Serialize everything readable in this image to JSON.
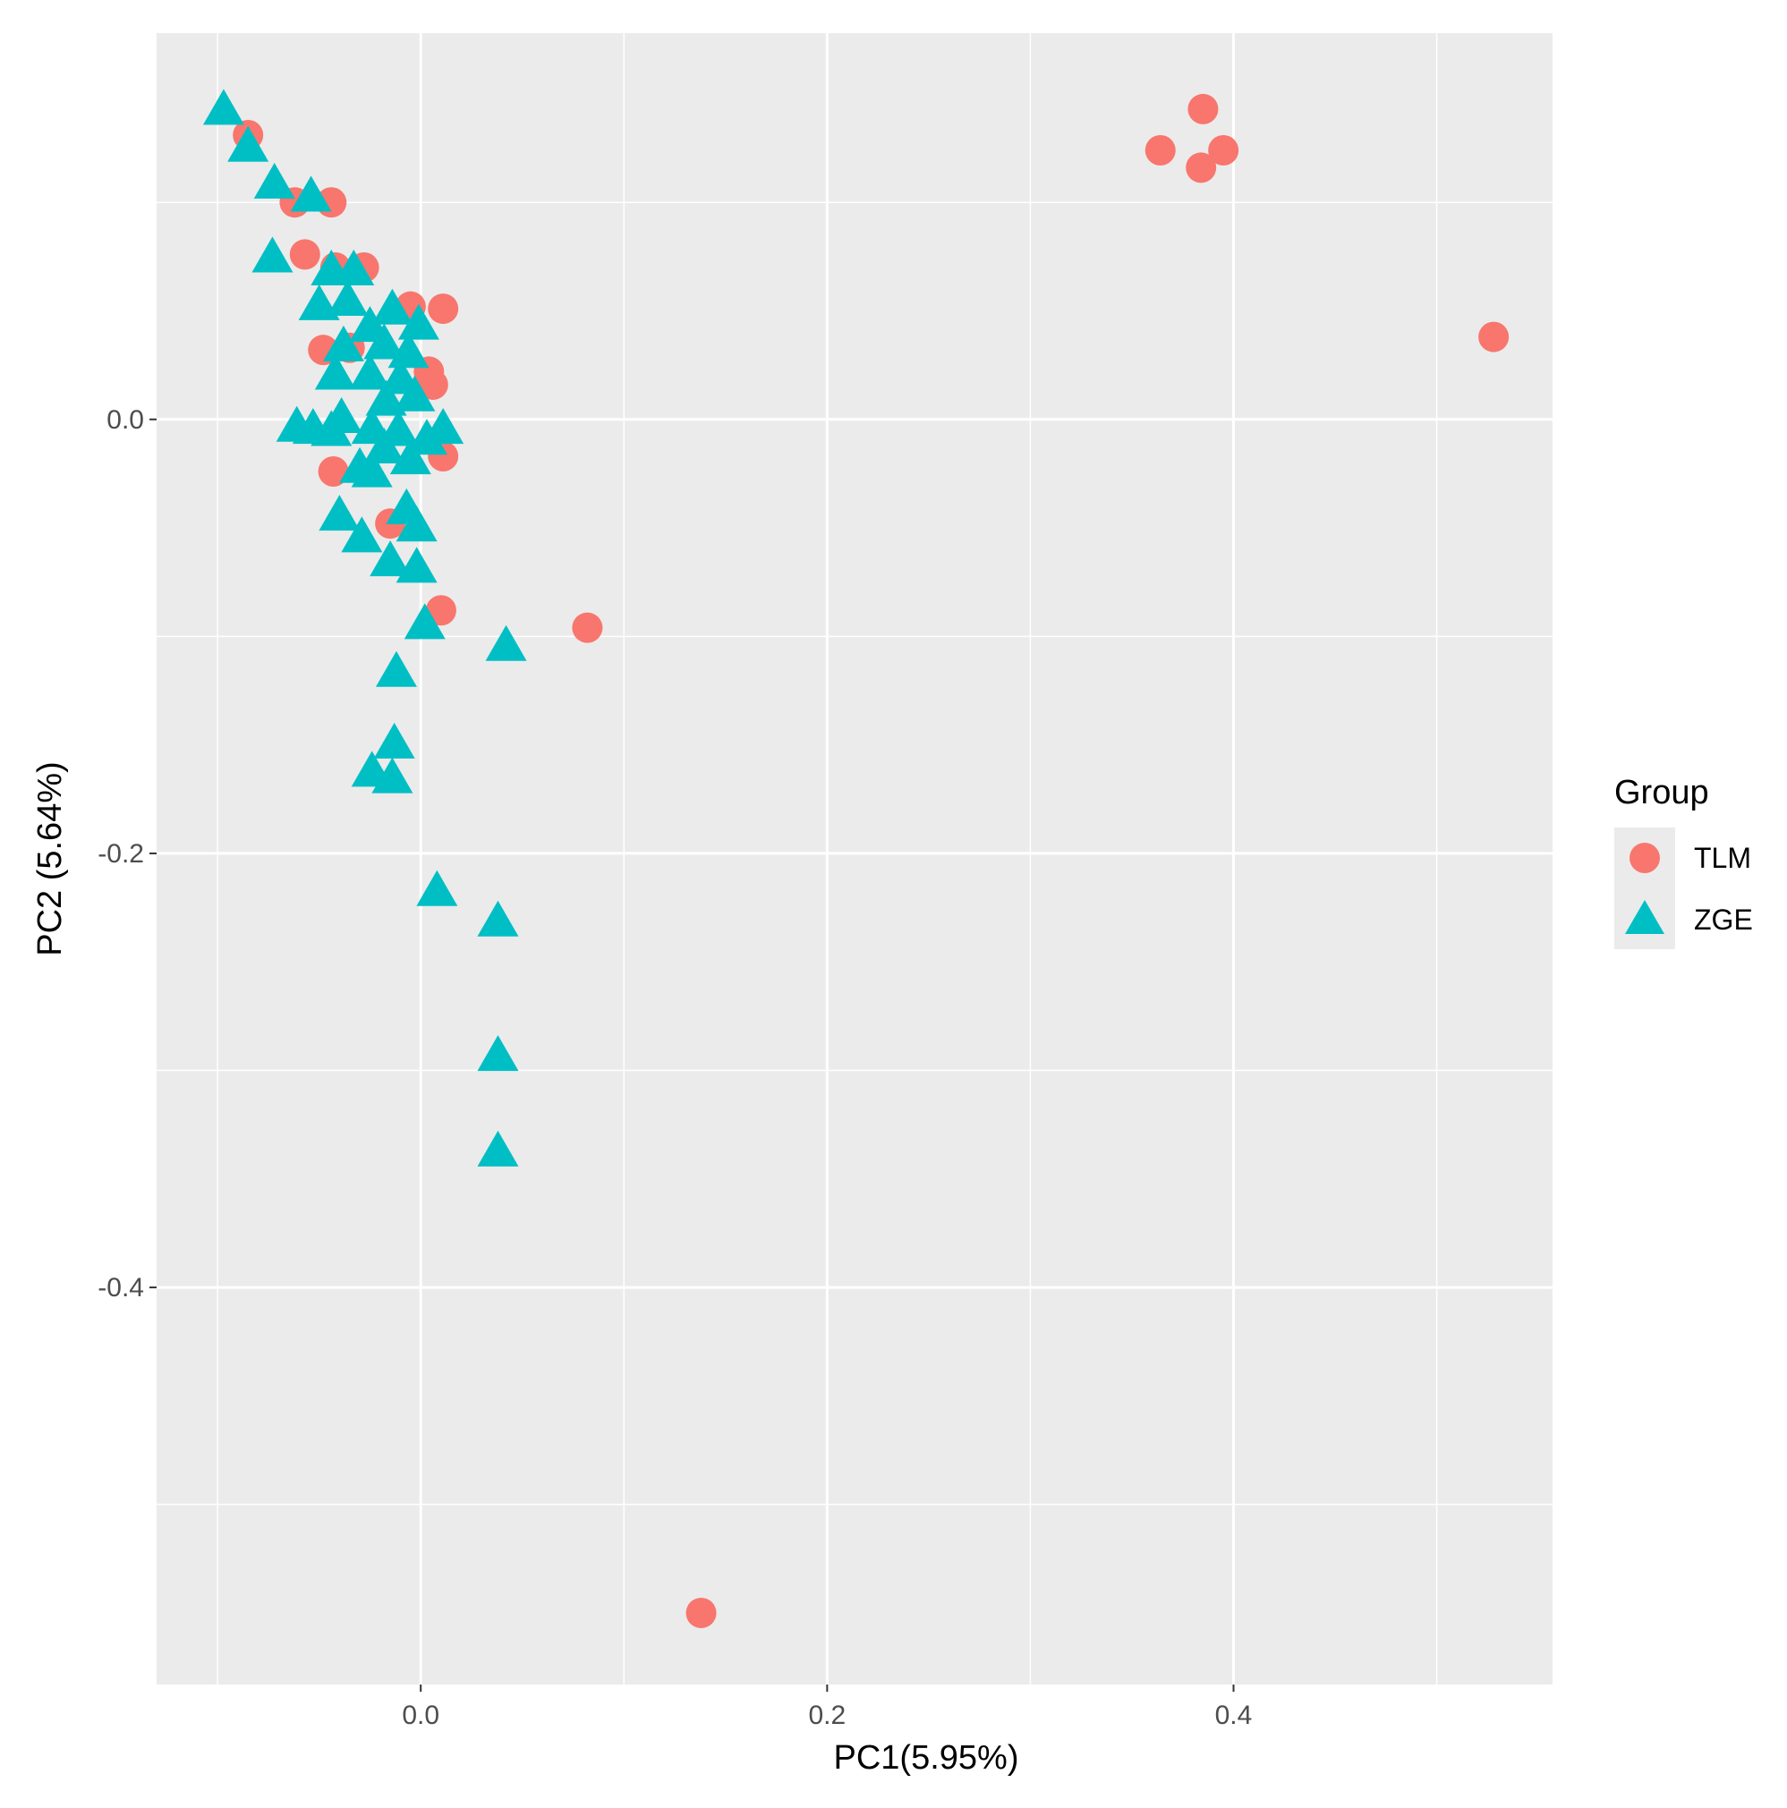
{
  "chart_data": {
    "type": "scatter",
    "xlabel": "PC1(5.95%)",
    "ylabel": "PC2 (5.64%)",
    "xlim": [
      -0.13,
      0.557
    ],
    "ylim": [
      -0.583,
      0.178
    ],
    "x_major_ticks": [
      0.0,
      0.2,
      0.4
    ],
    "x_tick_labels": [
      "0.0",
      "0.2",
      "0.4"
    ],
    "x_minor_ticks": [
      -0.1,
      0.1,
      0.3,
      0.5
    ],
    "y_major_ticks": [
      0.0,
      -0.2,
      -0.4
    ],
    "y_tick_labels": [
      "0.0",
      "-0.2",
      "-0.4"
    ],
    "y_minor_ticks": [
      0.1,
      -0.1,
      -0.3,
      -0.5
    ],
    "grid": true,
    "panel_background": "#ebebeb",
    "legend": {
      "title": "Group",
      "position": "right"
    },
    "series": [
      {
        "name": "TLM",
        "marker": "circle",
        "color": "#f8766d",
        "points": [
          [
            0.385,
            0.143
          ],
          [
            0.364,
            0.124
          ],
          [
            0.384,
            0.116
          ],
          [
            0.395,
            0.124
          ],
          [
            0.528,
            0.038
          ],
          [
            0.082,
            -0.096
          ],
          [
            0.138,
            -0.55
          ],
          [
            -0.085,
            0.131
          ],
          [
            -0.062,
            0.1
          ],
          [
            -0.044,
            0.1
          ],
          [
            -0.057,
            0.076
          ],
          [
            -0.042,
            0.07
          ],
          [
            -0.028,
            0.07
          ],
          [
            -0.005,
            0.052
          ],
          [
            0.011,
            0.051
          ],
          [
            -0.035,
            0.033
          ],
          [
            -0.048,
            0.032
          ],
          [
            0.004,
            0.022
          ],
          [
            0.006,
            0.016
          ],
          [
            0.011,
            -0.017
          ],
          [
            -0.043,
            -0.024
          ],
          [
            -0.015,
            -0.048
          ],
          [
            0.01,
            -0.088
          ]
        ]
      },
      {
        "name": "ZGE",
        "marker": "triangle",
        "color": "#00bfc4",
        "points": [
          [
            -0.097,
            0.142
          ],
          [
            -0.085,
            0.125
          ],
          [
            -0.072,
            0.108
          ],
          [
            -0.054,
            0.102
          ],
          [
            -0.073,
            0.074
          ],
          [
            -0.044,
            0.068
          ],
          [
            -0.033,
            0.068
          ],
          [
            -0.05,
            0.052
          ],
          [
            -0.036,
            0.054
          ],
          [
            -0.014,
            0.05
          ],
          [
            -0.001,
            0.043
          ],
          [
            -0.025,
            0.042
          ],
          [
            -0.038,
            0.033
          ],
          [
            -0.018,
            0.034
          ],
          [
            -0.006,
            0.03
          ],
          [
            -0.042,
            0.02
          ],
          [
            -0.025,
            0.02
          ],
          [
            -0.01,
            0.018
          ],
          [
            -0.003,
            0.01
          ],
          [
            -0.017,
            0.008
          ],
          [
            -0.061,
            -0.004
          ],
          [
            -0.053,
            -0.005
          ],
          [
            -0.044,
            -0.006
          ],
          [
            -0.039,
            0.0
          ],
          [
            -0.024,
            -0.005
          ],
          [
            -0.011,
            -0.006
          ],
          [
            0.003,
            -0.01
          ],
          [
            0.011,
            -0.005
          ],
          [
            -0.018,
            -0.014
          ],
          [
            -0.03,
            -0.023
          ],
          [
            -0.024,
            -0.025
          ],
          [
            -0.005,
            -0.019
          ],
          [
            -0.04,
            -0.045
          ],
          [
            -0.007,
            -0.042
          ],
          [
            -0.002,
            -0.05
          ],
          [
            -0.029,
            -0.055
          ],
          [
            -0.015,
            -0.066
          ],
          [
            -0.002,
            -0.069
          ],
          [
            0.002,
            -0.095
          ],
          [
            0.042,
            -0.105
          ],
          [
            -0.012,
            -0.117
          ],
          [
            -0.013,
            -0.15
          ],
          [
            -0.024,
            -0.163
          ],
          [
            -0.014,
            -0.166
          ],
          [
            0.008,
            -0.218
          ],
          [
            0.038,
            -0.232
          ],
          [
            0.038,
            -0.294
          ],
          [
            0.038,
            -0.338
          ]
        ]
      }
    ]
  }
}
